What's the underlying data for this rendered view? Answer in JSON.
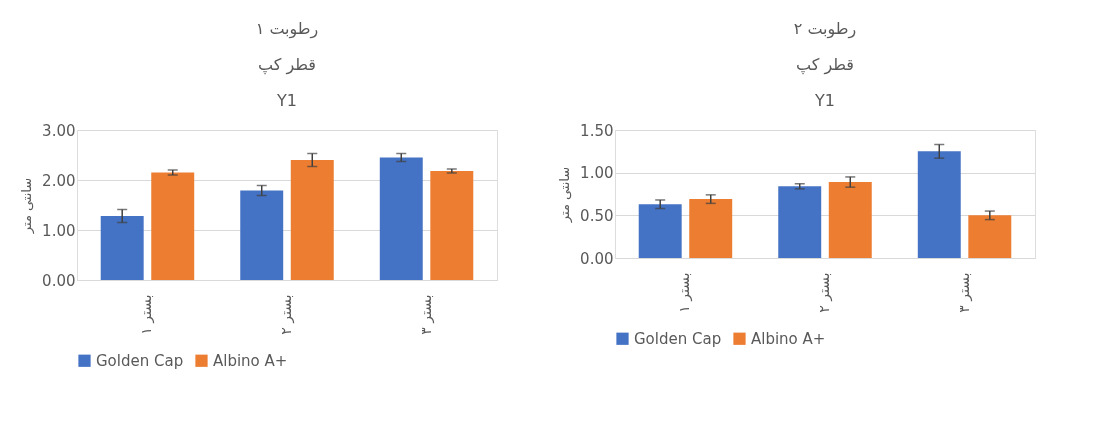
{
  "chart_data": [
    {
      "type": "bar",
      "title": "رطوبت ۱\nقطر کپ\nY1",
      "ylabel": "سانتی متر",
      "categories": [
        "بستر ۱",
        "بستر ۲",
        "بستر ۳"
      ],
      "series": [
        {
          "name": "Golden Cap",
          "color": "#4472c4",
          "values": [
            1.28,
            1.79,
            2.45
          ],
          "errors": [
            0.13,
            0.1,
            0.08
          ]
        },
        {
          "name": "Albino A+",
          "color": "#ed7d31",
          "values": [
            2.15,
            2.4,
            2.18
          ],
          "errors": [
            0.05,
            0.13,
            0.04
          ]
        }
      ],
      "ylim": [
        0,
        3
      ],
      "yticks": [
        {
          "value": 0,
          "label": "0.00"
        },
        {
          "value": 1,
          "label": "1.00"
        },
        {
          "value": 2,
          "label": "2.00"
        },
        {
          "value": 3,
          "label": "3.00"
        }
      ],
      "grid": "y",
      "legend": "bottom"
    },
    {
      "type": "bar",
      "title": "رطوبت ۲\nقطر کپ\nY1",
      "ylabel": "سانتی متر",
      "categories": [
        "بستر ۱",
        "بستر ۲",
        "بستر ۳"
      ],
      "series": [
        {
          "name": "Golden Cap",
          "color": "#4472c4",
          "values": [
            0.63,
            0.84,
            1.25
          ],
          "errors": [
            0.05,
            0.03,
            0.08
          ]
        },
        {
          "name": "Albino A+",
          "color": "#ed7d31",
          "values": [
            0.69,
            0.89,
            0.5
          ],
          "errors": [
            0.05,
            0.06,
            0.05
          ]
        }
      ],
      "ylim": [
        0,
        1.5
      ],
      "yticks": [
        {
          "value": 0,
          "label": "0.00"
        },
        {
          "value": 0.5,
          "label": "0.50"
        },
        {
          "value": 1,
          "label": "1.00"
        },
        {
          "value": 1.5,
          "label": "1.50"
        }
      ],
      "grid": "y",
      "legend": "bottom"
    }
  ]
}
